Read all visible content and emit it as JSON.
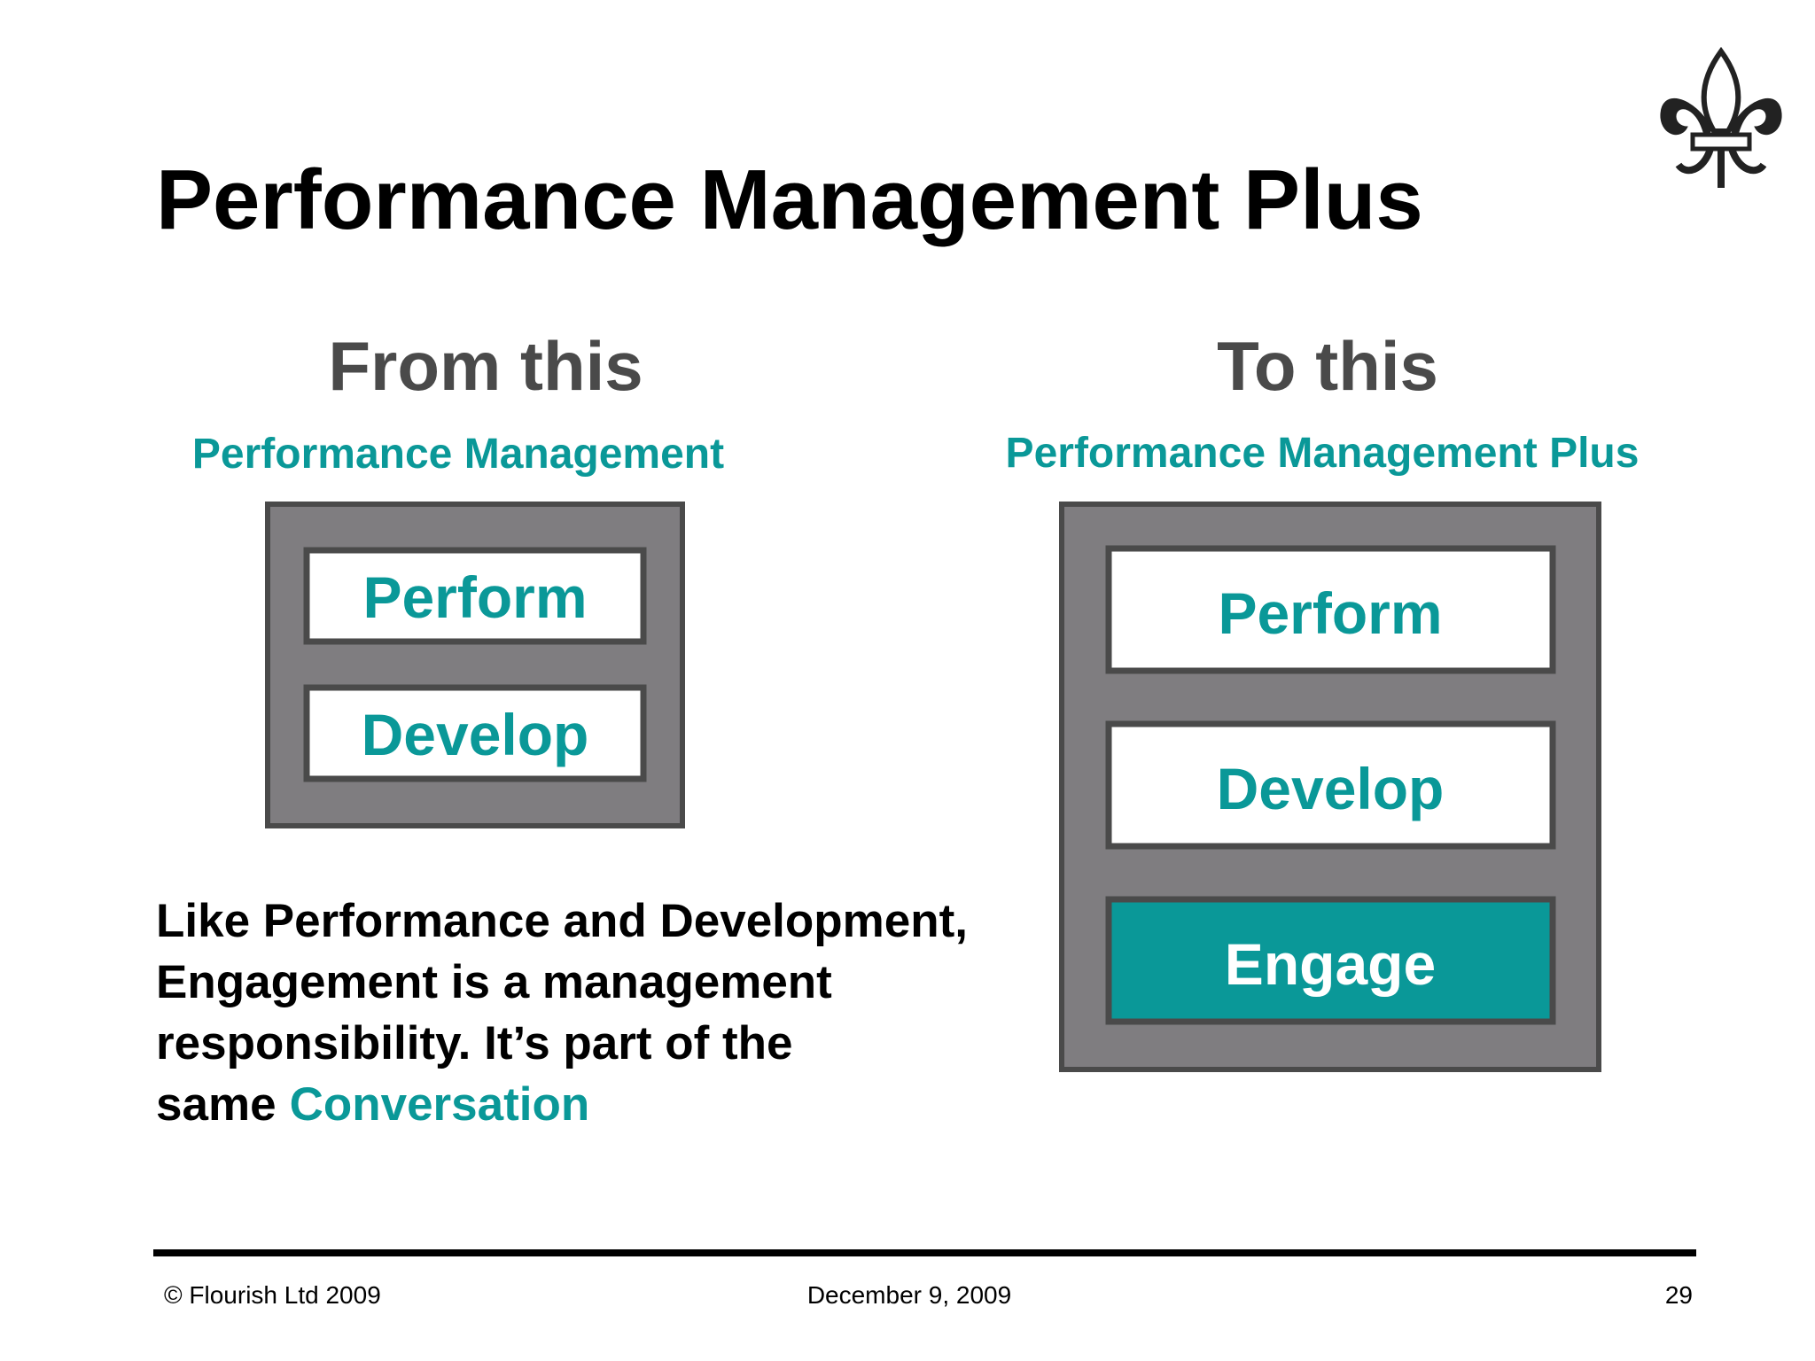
{
  "header": {
    "title": "Performance Management Plus"
  },
  "columns": [
    {
      "heading": "From this",
      "subheading": "Performance Management",
      "items": [
        "Perform",
        "Develop"
      ]
    },
    {
      "heading": "To this",
      "subheading": "Performance Management Plus",
      "items": [
        "Perform",
        "Develop",
        "Engage"
      ]
    }
  ],
  "paragraph": {
    "lines": [
      "Like Performance and Development,",
      "Engagement is a management",
      "responsibility. It’s part of the",
      "same"
    ],
    "highlight": "Conversation"
  },
  "footer": {
    "copyright": "© Flourish Ltd 2009",
    "date": "December 9, 2009",
    "page": "29"
  }
}
